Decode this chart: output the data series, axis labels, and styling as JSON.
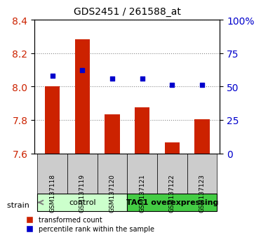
{
  "title": "GDS2451 / 261588_at",
  "samples": [
    "GSM137118",
    "GSM137119",
    "GSM137120",
    "GSM137121",
    "GSM137122",
    "GSM137123"
  ],
  "bar_values": [
    8.0,
    8.285,
    7.835,
    7.875,
    7.665,
    7.805
  ],
  "blue_values": [
    8.065,
    8.1,
    8.05,
    8.05,
    8.01,
    8.01
  ],
  "bar_color": "#cc2200",
  "blue_color": "#0000cc",
  "bar_bottom": 7.6,
  "ylim_left": [
    7.6,
    8.4
  ],
  "ylim_right": [
    0,
    100
  ],
  "yticks_left": [
    7.6,
    7.8,
    8.0,
    8.2,
    8.4
  ],
  "yticks_right": [
    0,
    25,
    50,
    75,
    100
  ],
  "ytick_labels_right": [
    "0",
    "25",
    "50",
    "75",
    "100%"
  ],
  "groups": [
    {
      "label": "control",
      "start": 0,
      "end": 3,
      "color": "#ccffcc"
    },
    {
      "label": "TAC1 overexpressing",
      "start": 3,
      "end": 6,
      "color": "#44cc44"
    }
  ],
  "strain_label": "strain",
  "legend_items": [
    {
      "color": "#cc2200",
      "label": "transformed count"
    },
    {
      "color": "#0000cc",
      "label": "percentile rank within the sample"
    }
  ],
  "xlabel": "",
  "ylabel_left": "",
  "ylabel_right": "",
  "grid_color": "#888888",
  "bg_color": "#ffffff",
  "bar_width": 0.5,
  "sample_bg_color": "#cccccc"
}
